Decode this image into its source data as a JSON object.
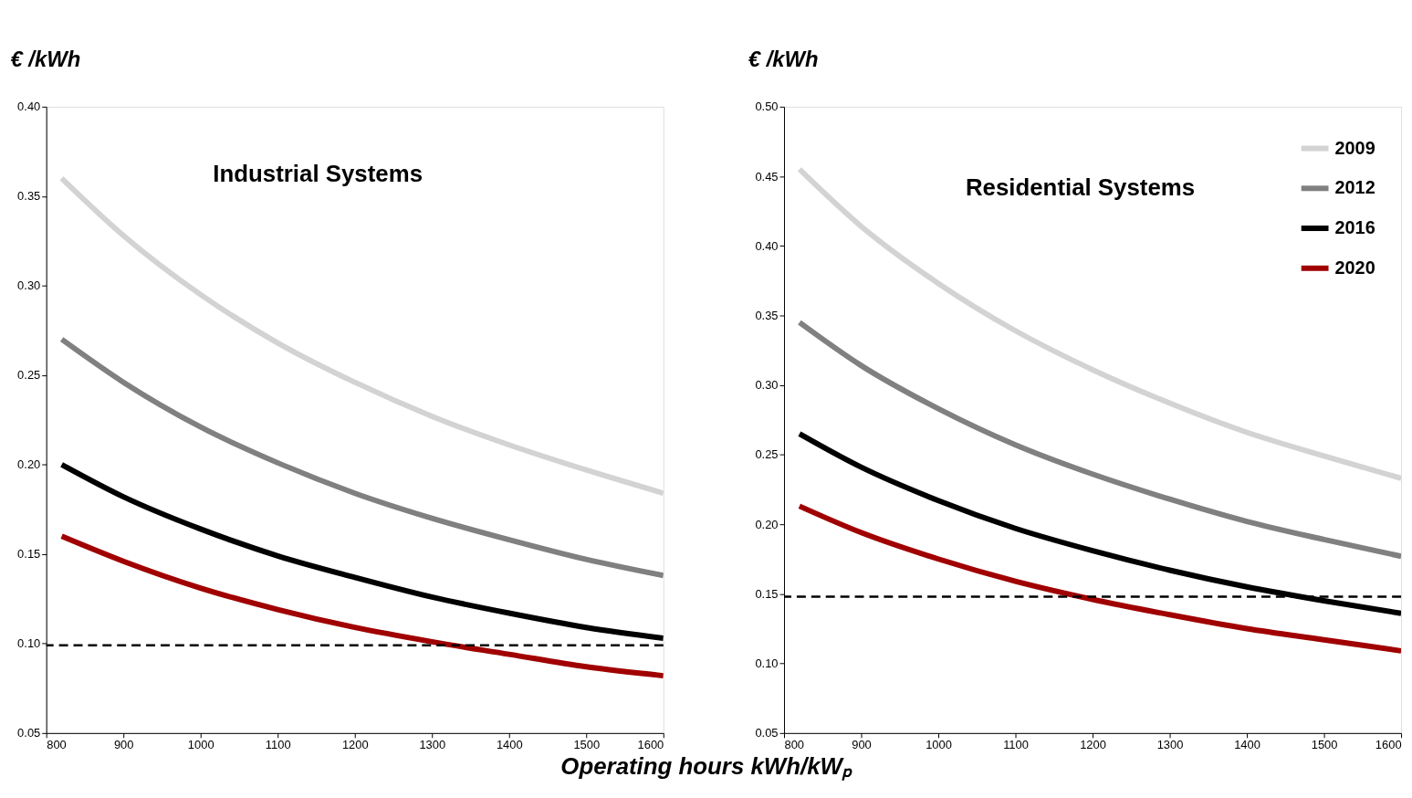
{
  "chart_data": [
    {
      "type": "line",
      "title": "Industrial Systems",
      "ylabel": "€ /kWh",
      "xlabel": "Operating hours kWh/kWₚ",
      "xlim": [
        800,
        1600
      ],
      "xticks": [
        800,
        900,
        1000,
        1100,
        1200,
        1300,
        1400,
        1500,
        1600
      ],
      "ylim": [
        0.05,
        0.4
      ],
      "yticks": [
        0.05,
        {
          "value": 0.1,
          "label": "0.10"
        },
        0.15,
        {
          "value": 0.2,
          "label": "0.20"
        },
        0.25,
        {
          "value": 0.3,
          "label": "0.30"
        },
        0.35,
        {
          "value": 0.4,
          "label": "0.40"
        }
      ],
      "grid": false,
      "legend": false,
      "line_style": "solid",
      "marker": "none",
      "x": [
        820,
        900,
        1000,
        1100,
        1200,
        1300,
        1400,
        1500,
        1600
      ],
      "series": [
        {
          "color": "#d3d3d3",
          "values": [
            0.36,
            0.328,
            0.295,
            0.268,
            0.246,
            0.227,
            0.211,
            0.197,
            0.184
          ]
        },
        {
          "color": "#808080",
          "values": [
            0.27,
            0.246,
            0.221,
            0.201,
            0.184,
            0.17,
            0.158,
            0.147,
            0.138
          ]
        },
        {
          "color": "#000000",
          "values": [
            0.2,
            0.182,
            0.164,
            0.149,
            0.137,
            0.126,
            0.117,
            0.109,
            0.103
          ]
        },
        {
          "color": "#a00000",
          "values": [
            0.16,
            0.146,
            0.131,
            0.119,
            0.109,
            0.101,
            0.094,
            0.087,
            0.082
          ]
        }
      ],
      "ref_lines": [
        {
          "axis": "y",
          "value": 0.099,
          "color": "#000000",
          "line_style": "dashed"
        }
      ]
    },
    {
      "type": "line",
      "title": "Residential Systems",
      "ylabel": "€ /kWh",
      "xlim": [
        800,
        1600
      ],
      "xticks": [
        800,
        900,
        1000,
        1100,
        1200,
        1300,
        1400,
        1500,
        1600
      ],
      "ylim": [
        0.05,
        0.5
      ],
      "yticks": [
        0.05,
        {
          "value": 0.1,
          "label": "0.10"
        },
        0.15,
        {
          "value": 0.2,
          "label": "0.20"
        },
        0.25,
        {
          "value": 0.3,
          "label": "0.30"
        },
        0.35,
        {
          "value": 0.4,
          "label": "0.40"
        },
        0.45,
        {
          "value": 0.5,
          "label": "0.50"
        }
      ],
      "grid": false,
      "legend": "top right",
      "line_style": "solid",
      "marker": "none",
      "x": [
        820,
        900,
        1000,
        1100,
        1200,
        1300,
        1400,
        1500,
        1600
      ],
      "series": [
        {
          "name": "2009",
          "color": "#d3d3d3",
          "values": [
            0.455,
            0.414,
            0.373,
            0.339,
            0.311,
            0.287,
            0.266,
            0.249,
            0.233
          ]
        },
        {
          "name": "2012",
          "color": "#808080",
          "values": [
            0.345,
            0.314,
            0.283,
            0.257,
            0.236,
            0.218,
            0.202,
            0.189,
            0.177
          ]
        },
        {
          "name": "2016",
          "color": "#000000",
          "values": [
            0.265,
            0.241,
            0.217,
            0.197,
            0.181,
            0.167,
            0.155,
            0.145,
            0.136
          ]
        },
        {
          "name": "2020",
          "color": "#a00000",
          "values": [
            0.213,
            0.194,
            0.175,
            0.159,
            0.146,
            0.135,
            0.125,
            0.117,
            0.109
          ]
        }
      ],
      "ref_lines": [
        {
          "axis": "y",
          "value": 0.148,
          "color": "#000000",
          "line_style": "dashed"
        }
      ]
    }
  ]
}
